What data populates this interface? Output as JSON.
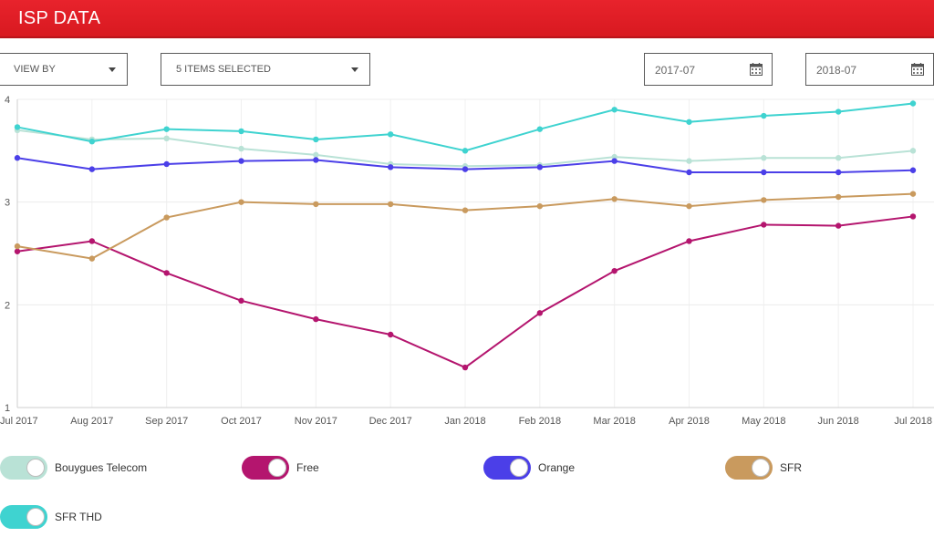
{
  "header": {
    "title": "ISP DATA"
  },
  "controls": {
    "view_by_label": "VIEW BY",
    "items_label": "5 ITEMS SELECTED",
    "date_start": "2017-07",
    "date_end": "2018-07"
  },
  "icons": {
    "dropdown": "chevron-down-icon",
    "calendar": "calendar-icon"
  },
  "chart_data": {
    "type": "line",
    "title": "",
    "xlabel": "",
    "ylabel": "",
    "categories": [
      "Jul 2017",
      "Aug 2017",
      "Sep 2017",
      "Oct 2017",
      "Nov 2017",
      "Dec 2017",
      "Jan 2018",
      "Feb 2018",
      "Mar 2018",
      "Apr 2018",
      "May 2018",
      "Jun 2018",
      "Jul 2018"
    ],
    "ylim": [
      1,
      4
    ],
    "yticks": [
      1,
      2,
      3,
      4
    ],
    "grid": true,
    "legend_position": "bottom",
    "series": [
      {
        "name": "Bouygues Telecom",
        "color": "#b9e2d6",
        "values": [
          3.7,
          3.61,
          3.62,
          3.52,
          3.46,
          3.37,
          3.35,
          3.36,
          3.44,
          3.4,
          3.43,
          3.43,
          3.5
        ]
      },
      {
        "name": "Free",
        "color": "#b4156e",
        "values": [
          2.52,
          2.62,
          2.31,
          2.04,
          1.86,
          1.71,
          1.39,
          1.92,
          2.33,
          2.62,
          2.78,
          2.77,
          2.86
        ]
      },
      {
        "name": "Orange",
        "color": "#4b3fe8",
        "values": [
          3.43,
          3.32,
          3.37,
          3.4,
          3.41,
          3.34,
          3.32,
          3.34,
          3.4,
          3.29,
          3.29,
          3.29,
          3.31
        ]
      },
      {
        "name": "SFR",
        "color": "#c99a5e",
        "values": [
          2.57,
          2.45,
          2.85,
          3.0,
          2.98,
          2.98,
          2.92,
          2.96,
          3.03,
          2.96,
          3.02,
          3.05,
          3.08
        ]
      },
      {
        "name": "SFR THD",
        "color": "#3fd3d0",
        "values": [
          3.73,
          3.59,
          3.71,
          3.69,
          3.61,
          3.66,
          3.5,
          3.71,
          3.9,
          3.78,
          3.84,
          3.88,
          3.96
        ]
      }
    ]
  }
}
